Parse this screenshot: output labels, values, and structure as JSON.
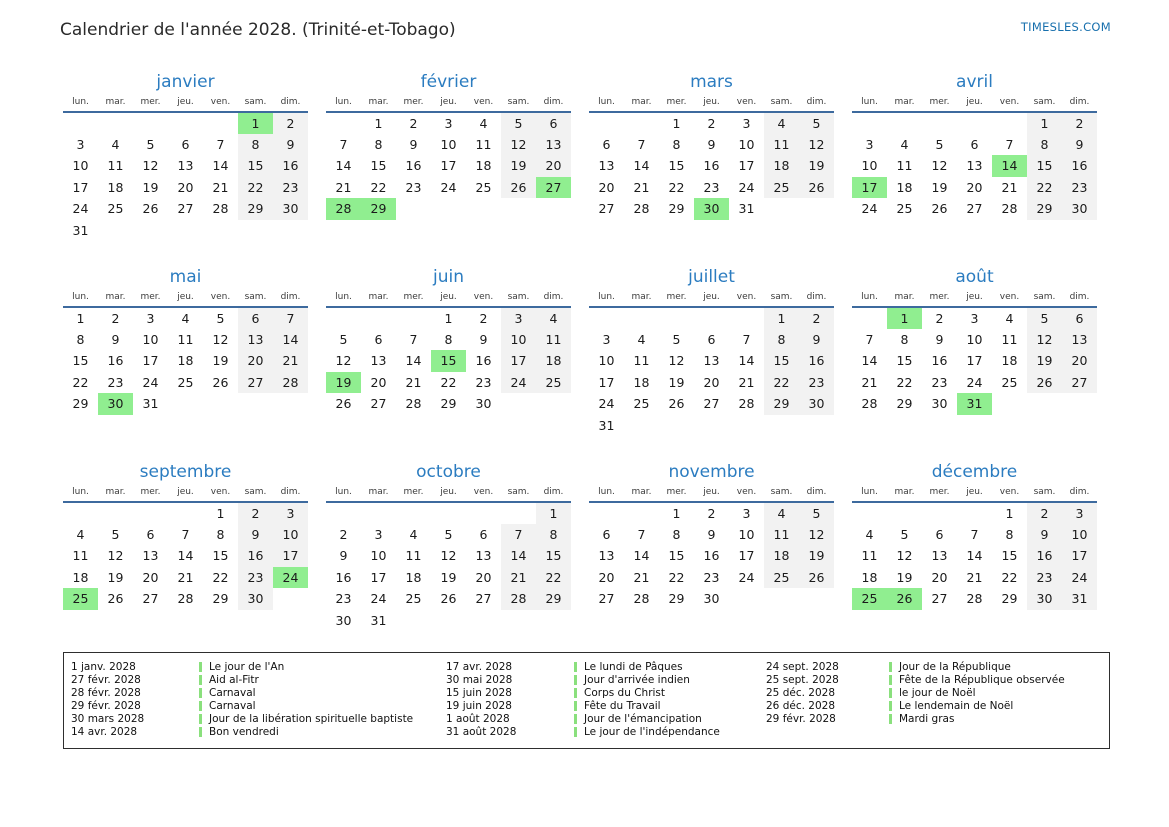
{
  "page": {
    "title": "Calendrier de l'année 2028. (Trinité-et-Tobago)",
    "brand": "TIMESLES.COM"
  },
  "colors": {
    "month_title_blue": "#2b7cc0",
    "header_line_blue": "#3d6a9e",
    "holiday_green": "#90ee90",
    "weekend_gray": "#f2f2f2",
    "brand_blue": "#176fad",
    "legend_bar_green": "#8ae07d"
  },
  "weekday_headers": [
    "lun.",
    "mar.",
    "mer.",
    "jeu.",
    "ven.",
    "sam.",
    "dim."
  ],
  "months": [
    {
      "name": "janvier",
      "holidays": [
        1
      ],
      "weeks": [
        [
          "",
          "",
          "",
          "",
          "",
          1,
          2
        ],
        [
          3,
          4,
          5,
          6,
          7,
          8,
          9
        ],
        [
          10,
          11,
          12,
          13,
          14,
          15,
          16
        ],
        [
          17,
          18,
          19,
          20,
          21,
          22,
          23
        ],
        [
          24,
          25,
          26,
          27,
          28,
          29,
          30
        ],
        [
          31,
          "",
          "",
          "",
          "",
          "",
          ""
        ]
      ]
    },
    {
      "name": "février",
      "holidays": [
        27,
        28,
        29
      ],
      "weeks": [
        [
          "",
          1,
          2,
          3,
          4,
          5,
          6
        ],
        [
          7,
          8,
          9,
          10,
          11,
          12,
          13
        ],
        [
          14,
          15,
          16,
          17,
          18,
          19,
          20
        ],
        [
          21,
          22,
          23,
          24,
          25,
          26,
          27
        ],
        [
          28,
          29,
          "",
          "",
          "",
          "",
          ""
        ]
      ]
    },
    {
      "name": "mars",
      "holidays": [
        30
      ],
      "weeks": [
        [
          "",
          "",
          1,
          2,
          3,
          4,
          5
        ],
        [
          6,
          7,
          8,
          9,
          10,
          11,
          12
        ],
        [
          13,
          14,
          15,
          16,
          17,
          18,
          19
        ],
        [
          20,
          21,
          22,
          23,
          24,
          25,
          26
        ],
        [
          27,
          28,
          29,
          30,
          31,
          "",
          ""
        ]
      ]
    },
    {
      "name": "avril",
      "holidays": [
        14,
        17
      ],
      "weeks": [
        [
          "",
          "",
          "",
          "",
          "",
          1,
          2
        ],
        [
          3,
          4,
          5,
          6,
          7,
          8,
          9
        ],
        [
          10,
          11,
          12,
          13,
          14,
          15,
          16
        ],
        [
          17,
          18,
          19,
          20,
          21,
          22,
          23
        ],
        [
          24,
          25,
          26,
          27,
          28,
          29,
          30
        ]
      ]
    },
    {
      "name": "mai",
      "holidays": [
        30
      ],
      "weeks": [
        [
          1,
          2,
          3,
          4,
          5,
          6,
          7
        ],
        [
          8,
          9,
          10,
          11,
          12,
          13,
          14
        ],
        [
          15,
          16,
          17,
          18,
          19,
          20,
          21
        ],
        [
          22,
          23,
          24,
          25,
          26,
          27,
          28
        ],
        [
          29,
          30,
          31,
          "",
          "",
          "",
          ""
        ]
      ]
    },
    {
      "name": "juin",
      "holidays": [
        15,
        19
      ],
      "weeks": [
        [
          "",
          "",
          "",
          1,
          2,
          3,
          4
        ],
        [
          5,
          6,
          7,
          8,
          9,
          10,
          11
        ],
        [
          12,
          13,
          14,
          15,
          16,
          17,
          18
        ],
        [
          19,
          20,
          21,
          22,
          23,
          24,
          25
        ],
        [
          26,
          27,
          28,
          29,
          30,
          "",
          ""
        ]
      ]
    },
    {
      "name": "juillet",
      "holidays": [],
      "weeks": [
        [
          "",
          "",
          "",
          "",
          "",
          1,
          2
        ],
        [
          3,
          4,
          5,
          6,
          7,
          8,
          9
        ],
        [
          10,
          11,
          12,
          13,
          14,
          15,
          16
        ],
        [
          17,
          18,
          19,
          20,
          21,
          22,
          23
        ],
        [
          24,
          25,
          26,
          27,
          28,
          29,
          30
        ],
        [
          31,
          "",
          "",
          "",
          "",
          "",
          ""
        ]
      ]
    },
    {
      "name": "août",
      "holidays": [
        1,
        31
      ],
      "weeks": [
        [
          "",
          1,
          2,
          3,
          4,
          5,
          6
        ],
        [
          7,
          8,
          9,
          10,
          11,
          12,
          13
        ],
        [
          14,
          15,
          16,
          17,
          18,
          19,
          20
        ],
        [
          21,
          22,
          23,
          24,
          25,
          26,
          27
        ],
        [
          28,
          29,
          30,
          31,
          "",
          "",
          ""
        ]
      ]
    },
    {
      "name": "septembre",
      "holidays": [
        24,
        25
      ],
      "weeks": [
        [
          "",
          "",
          "",
          "",
          1,
          2,
          3
        ],
        [
          4,
          5,
          6,
          7,
          8,
          9,
          10
        ],
        [
          11,
          12,
          13,
          14,
          15,
          16,
          17
        ],
        [
          18,
          19,
          20,
          21,
          22,
          23,
          24
        ],
        [
          25,
          26,
          27,
          28,
          29,
          30,
          ""
        ]
      ]
    },
    {
      "name": "octobre",
      "holidays": [],
      "weeks": [
        [
          "",
          "",
          "",
          "",
          "",
          "",
          1
        ],
        [
          2,
          3,
          4,
          5,
          6,
          7,
          8
        ],
        [
          9,
          10,
          11,
          12,
          13,
          14,
          15
        ],
        [
          16,
          17,
          18,
          19,
          20,
          21,
          22
        ],
        [
          23,
          24,
          25,
          26,
          27,
          28,
          29
        ],
        [
          30,
          31,
          "",
          "",
          "",
          "",
          ""
        ]
      ]
    },
    {
      "name": "novembre",
      "holidays": [],
      "weeks": [
        [
          "",
          "",
          1,
          2,
          3,
          4,
          5
        ],
        [
          6,
          7,
          8,
          9,
          10,
          11,
          12
        ],
        [
          13,
          14,
          15,
          16,
          17,
          18,
          19
        ],
        [
          20,
          21,
          22,
          23,
          24,
          25,
          26
        ],
        [
          27,
          28,
          29,
          30,
          "",
          "",
          ""
        ]
      ]
    },
    {
      "name": "décembre",
      "holidays": [
        25,
        26
      ],
      "weeks": [
        [
          "",
          "",
          "",
          "",
          1,
          2,
          3
        ],
        [
          4,
          5,
          6,
          7,
          8,
          9,
          10
        ],
        [
          11,
          12,
          13,
          14,
          15,
          16,
          17
        ],
        [
          18,
          19,
          20,
          21,
          22,
          23,
          24
        ],
        [
          25,
          26,
          27,
          28,
          29,
          30,
          31
        ]
      ]
    }
  ],
  "legend": {
    "groups": [
      [
        {
          "date": "1 janv. 2028",
          "name": "Le jour de l'An"
        },
        {
          "date": "27 févr. 2028",
          "name": "Aid al-Fitr"
        },
        {
          "date": "28 févr. 2028",
          "name": "Carnaval"
        },
        {
          "date": "29 févr. 2028",
          "name": "Carnaval"
        },
        {
          "date": "30 mars 2028",
          "name": "Jour de la libération spirituelle baptiste"
        },
        {
          "date": "14 avr. 2028",
          "name": "Bon vendredi"
        }
      ],
      [
        {
          "date": "17 avr. 2028",
          "name": "Le lundi de Pâques"
        },
        {
          "date": "30 mai 2028",
          "name": "Jour d'arrivée indien"
        },
        {
          "date": "15 juin 2028",
          "name": "Corps du Christ"
        },
        {
          "date": "19 juin 2028",
          "name": "Fête du Travail"
        },
        {
          "date": "1 août 2028",
          "name": "Jour de l'émancipation"
        },
        {
          "date": "31 août 2028",
          "name": "Le jour de l'indépendance"
        }
      ],
      [
        {
          "date": "24 sept. 2028",
          "name": "Jour de la République"
        },
        {
          "date": "25 sept. 2028",
          "name": "Fête de la République observée"
        },
        {
          "date": "25 déc. 2028",
          "name": "le jour de Noël"
        },
        {
          "date": "26 déc. 2028",
          "name": "Le lendemain de Noël"
        },
        {
          "date": "29 févr. 2028",
          "name": "Mardi gras"
        }
      ]
    ]
  }
}
